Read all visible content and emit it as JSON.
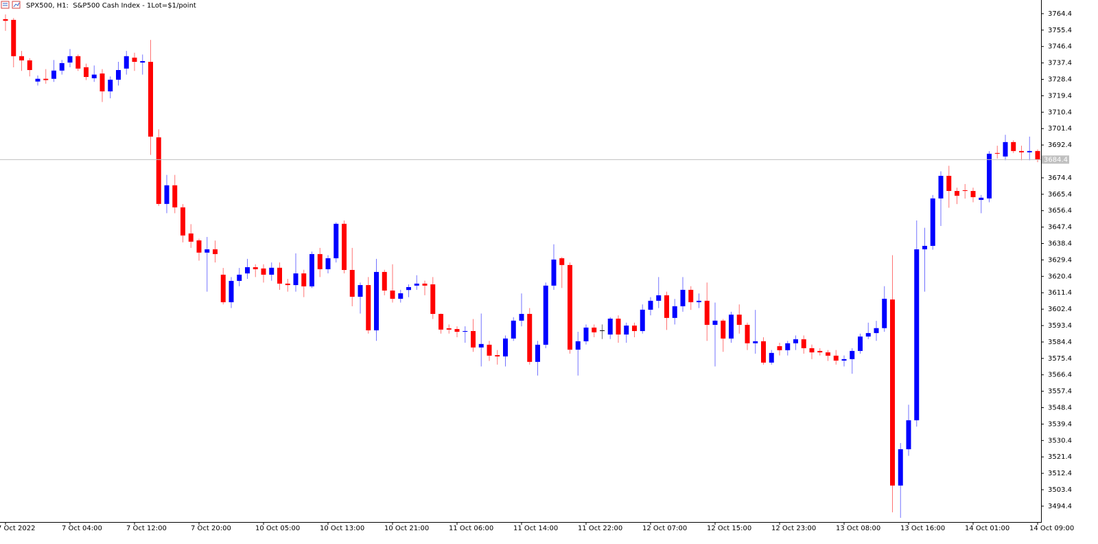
{
  "chart_data": {
    "type": "candlestick",
    "title": "SPX500, H1:  S&P500 Cash Index - 1Lot=$1/point",
    "up_color": "#0000ff",
    "down_color": "#ff0000",
    "doji_color": "#000000",
    "current_price": 3684.4,
    "ylim": [
      3485.7,
      3771.9
    ],
    "yticks": [
      3764.4,
      3755.4,
      3746.4,
      3737.4,
      3728.4,
      3719.4,
      3710.4,
      3701.4,
      3692.4,
      3674.4,
      3665.4,
      3656.4,
      3647.4,
      3638.4,
      3629.4,
      3620.4,
      3611.4,
      3602.4,
      3593.4,
      3584.4,
      3575.4,
      3566.4,
      3557.4,
      3548.4,
      3539.4,
      3530.4,
      3521.4,
      3512.4,
      3503.4,
      3494.4
    ],
    "categories": [
      "7 Oct 2022",
      null,
      null,
      null,
      null,
      null,
      null,
      null,
      "7 Oct 04:00",
      null,
      null,
      null,
      null,
      null,
      null,
      null,
      "7 Oct 12:00",
      null,
      null,
      null,
      null,
      null,
      null,
      null,
      "7 Oct 20:00",
      null,
      null,
      null,
      null,
      null,
      null,
      null,
      "10 Oct 05:00",
      null,
      null,
      null,
      null,
      null,
      null,
      null,
      "10 Oct 13:00",
      null,
      null,
      null,
      null,
      null,
      null,
      null,
      "10 Oct 21:00",
      null,
      null,
      null,
      null,
      null,
      null,
      null,
      "11 Oct 06:00",
      null,
      null,
      null,
      null,
      null,
      null,
      null,
      "11 Oct 14:00",
      null,
      null,
      null,
      null,
      null,
      null,
      null,
      "11 Oct 22:00",
      null,
      null,
      null,
      null,
      null,
      null,
      null,
      "12 Oct 07:00",
      null,
      null,
      null,
      null,
      null,
      null,
      null,
      "12 Oct 15:00",
      null,
      null,
      null,
      null,
      null,
      null,
      null,
      "12 Oct 23:00",
      null,
      null,
      null,
      null,
      null,
      null,
      null,
      "13 Oct 08:00",
      null,
      null,
      null,
      null,
      null,
      null,
      null,
      "13 Oct 16:00",
      null,
      null,
      null,
      null,
      null,
      null,
      null,
      "14 Oct 01:00",
      null,
      null,
      null,
      null,
      null,
      null,
      null,
      "14 Oct 09:00"
    ],
    "open": [
      3761.4,
      3761.0,
      3741.1,
      3738.8,
      3727.2,
      3728.7,
      3728.7,
      3733.2,
      3737.6,
      3741.1,
      3735.0,
      3729.0,
      3731.6,
      3721.8,
      3728.2,
      3734.3,
      3740.3,
      3737.6,
      3738.0,
      3696.6,
      3660.1,
      3670.3,
      3658.2,
      3643.9,
      3640.1,
      3633.4,
      3635.2,
      3621.3,
      3606.2,
      3617.9,
      3622.0,
      3625.4,
      3624.7,
      3621.3,
      3625.1,
      3616.4,
      3615.6,
      3622.0,
      3614.9,
      3632.6,
      3624.3,
      3630.3,
      3649.2,
      3623.9,
      3609.2,
      3615.6,
      3590.8,
      3622.8,
      3612.6,
      3608.1,
      3612.9,
      3615.3,
      3616.4,
      3616.0,
      3599.8,
      3591.9,
      3591.5,
      3590.0,
      3590.4,
      3581.4,
      3582.9,
      3577.2,
      3576.5,
      3586.3,
      3596.1,
      3599.8,
      3573.5,
      3582.9,
      3615.3,
      3630.3,
      3626.6,
      3580.2,
      3584.8,
      3592.3,
      3590.8,
      3588.5,
      3597.2,
      3588.5,
      3593.4,
      3590.4,
      3602.1,
      3607.0,
      3610.0,
      3597.6,
      3604.0,
      3613.0,
      3606.2,
      3607.0,
      3593.8,
      3596.1,
      3586.3,
      3599.4,
      3593.8,
      3583.7,
      3584.8,
      3573.1,
      3582.1,
      3579.9,
      3583.7,
      3585.9,
      3581.0,
      3579.5,
      3578.7,
      3576.9,
      3574.2,
      3575.0,
      3579.5,
      3587.4,
      3589.3,
      3592.0,
      3607.7,
      3505.7,
      3525.6,
      3541.5,
      3635.2,
      3637.1,
      3663.1,
      3675.5,
      3667.2,
      3667.6,
      3667.2,
      3662.3,
      3663.1,
      3688.0,
      3686.1,
      3694.0,
      3689.1,
      3688.4,
      3689.1
    ],
    "high": [
      3764,
      3762,
      3744,
      3740,
      3730.5,
      3734,
      3739,
      3739,
      3745,
      3742,
      3737,
      3736,
      3734,
      3730,
      3738,
      3744,
      3743,
      3742,
      3750,
      3701,
      3676,
      3676,
      3660,
      3649,
      3641,
      3642,
      3640,
      3625,
      3620,
      3625,
      3630,
      3627,
      3627,
      3628,
      3628,
      3619,
      3633,
      3624,
      3634,
      3636,
      3632,
      3650,
      3651,
      3636,
      3617,
      3620,
      3630,
      3624,
      3627,
      3613,
      3616,
      3621,
      3618,
      3620,
      3600,
      3594,
      3593,
      3593,
      3597,
      3600,
      3585,
      3580,
      3588,
      3598,
      3611,
      3603,
      3585,
      3617,
      3638,
      3631,
      3628,
      3590,
      3594,
      3594,
      3594,
      3598,
      3599,
      3595,
      3595,
      3605,
      3609,
      3620,
      3612,
      3608,
      3620,
      3615,
      3611,
      3617,
      3606,
      3597,
      3601,
      3605,
      3595,
      3602,
      3587,
      3580,
      3584,
      3585,
      3588,
      3588,
      3583,
      3581,
      3580,
      3580,
      3577,
      3581,
      3589,
      3595,
      3596,
      3615,
      3632,
      3529,
      3550,
      3651,
      3647,
      3665,
      3678,
      3681,
      3669,
      3671,
      3669,
      3665,
      3689,
      3692,
      3698,
      3695,
      3692,
      3697,
      3690
    ],
    "low": [
      3755,
      3735,
      3733,
      3730,
      3725,
      3726,
      3727,
      3731,
      3735,
      3733,
      3728,
      3727,
      3716,
      3718,
      3725,
      3731,
      3733,
      3731,
      3687,
      3659,
      3655,
      3655,
      3639,
      3636,
      3629,
      3612,
      3628,
      3605,
      3603,
      3615,
      3619,
      3620,
      3617,
      3618,
      3613,
      3612,
      3612,
      3609,
      3614,
      3620,
      3622,
      3628,
      3622,
      3604,
      3600,
      3589,
      3585,
      3610,
      3606,
      3606,
      3609,
      3613,
      3610,
      3597,
      3589,
      3589,
      3587,
      3584,
      3579,
      3571,
      3574,
      3572,
      3571,
      3585,
      3593,
      3572,
      3566,
      3581,
      3613,
      3614,
      3578,
      3566,
      3583,
      3587,
      3586,
      3586,
      3584,
      3584,
      3587,
      3589,
      3599,
      3603,
      3591,
      3594,
      3601,
      3602,
      3603,
      3585,
      3571,
      3579,
      3584,
      3589,
      3580,
      3578,
      3572,
      3572,
      3577,
      3577,
      3580,
      3578,
      3575,
      3577,
      3574,
      3572,
      3571,
      3567,
      3578,
      3586,
      3585,
      3590,
      3491,
      3488,
      3522,
      3538,
      3612,
      3635,
      3648,
      3658,
      3660,
      3663,
      3661,
      3655,
      3661,
      3685,
      3684,
      3688,
      3684,
      3684,
      3683
    ],
    "close": [
      3760.5,
      3741.1,
      3738.8,
      3733.5,
      3728.7,
      3728.0,
      3733.2,
      3737.3,
      3741.1,
      3734.3,
      3729.7,
      3731.0,
      3721.8,
      3728.2,
      3733.5,
      3741.1,
      3738.0,
      3738.4,
      3697.0,
      3660.1,
      3670.3,
      3658.2,
      3642.8,
      3639.4,
      3633.4,
      3635.2,
      3632.6,
      3606.2,
      3617.9,
      3621.3,
      3625.4,
      3624.3,
      3621.3,
      3625.1,
      3616.4,
      3615.6,
      3622.0,
      3614.9,
      3632.6,
      3624.3,
      3630.3,
      3649.2,
      3623.9,
      3609.2,
      3615.6,
      3590.8,
      3622.8,
      3612.6,
      3608.1,
      3611.1,
      3614.5,
      3616.4,
      3615.3,
      3599.8,
      3591.2,
      3591.2,
      3590.0,
      3590.4,
      3581.4,
      3583.3,
      3576.9,
      3576.5,
      3586.3,
      3596.1,
      3599.8,
      3573.5,
      3582.9,
      3615.3,
      3629.6,
      3626.6,
      3580.2,
      3584.8,
      3592.3,
      3589.7,
      3590.8,
      3597.2,
      3588.5,
      3593.4,
      3590.4,
      3602.1,
      3607.0,
      3610.0,
      3597.6,
      3604.0,
      3613.0,
      3606.2,
      3607.0,
      3593.8,
      3596.1,
      3586.3,
      3599.4,
      3593.8,
      3583.7,
      3584.8,
      3573.1,
      3578.4,
      3579.9,
      3583.7,
      3585.9,
      3581.0,
      3578.7,
      3578.7,
      3576.9,
      3574.2,
      3575.0,
      3579.5,
      3587.4,
      3589.3,
      3592.0,
      3608.1,
      3505.7,
      3525.6,
      3541.5,
      3635.2,
      3637.1,
      3663.1,
      3675.5,
      3667.2,
      3664.6,
      3667.2,
      3663.8,
      3663.5,
      3687.6,
      3687.6,
      3694.0,
      3689.1,
      3688.4,
      3689.1,
      3684.4
    ]
  }
}
